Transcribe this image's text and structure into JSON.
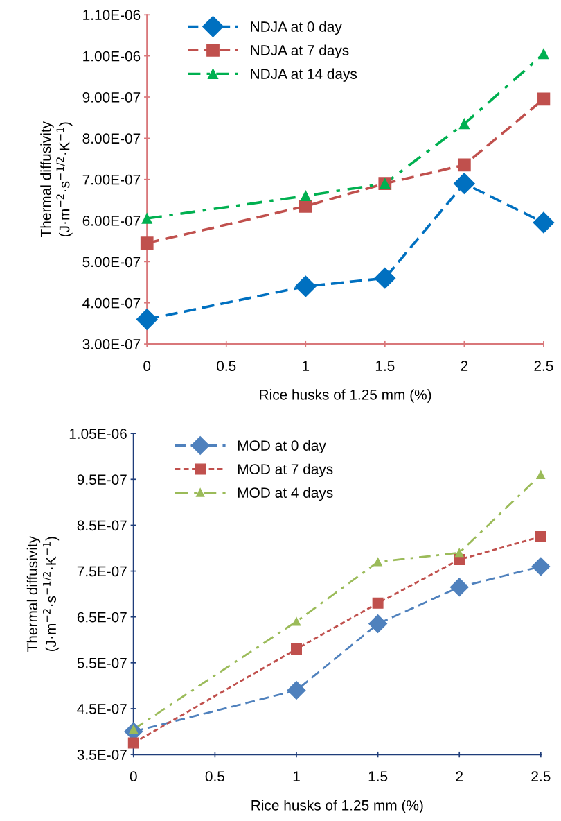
{
  "chart_data": [
    {
      "type": "line",
      "xlabel": "Rice husks of 1.25 mm (%)",
      "ylabel": "Thermal diffusivity\n(J·m$^{−2}$·s$^{−1/2}$·K$^{−1}$)",
      "x": [
        0,
        1,
        1.5,
        2,
        2.5
      ],
      "series": [
        {
          "name": "NDJA at 0 day",
          "color": "#0070c0",
          "marker": "diamond",
          "line_style": "dashed",
          "values": [
            3.6e-07,
            4.4e-07,
            4.6e-07,
            6.9e-07,
            5.95e-07
          ]
        },
        {
          "name": "NDJA at 7 days",
          "color": "#c0504d",
          "marker": "square",
          "line_style": "dashed",
          "values": [
            5.45e-07,
            6.35e-07,
            6.9e-07,
            7.35e-07,
            8.95e-07
          ]
        },
        {
          "name": "NDJA at 14 days",
          "color": "#00b050",
          "marker": "triangle",
          "line_style": "dashdot",
          "values": [
            6.05e-07,
            6.6e-07,
            6.9e-07,
            8.35e-07,
            1.005e-06
          ]
        }
      ],
      "xlim": [
        0,
        2.5
      ],
      "xticks": [
        0,
        0.5,
        1,
        1.5,
        2,
        2.5
      ],
      "ylim": [
        3e-07,
        1.1e-06
      ],
      "yticks": [
        {
          "value": 3e-07,
          "label": "3.00E-07"
        },
        {
          "value": 4e-07,
          "label": "4.00E-07"
        },
        {
          "value": 5e-07,
          "label": "5.00E-07"
        },
        {
          "value": 6e-07,
          "label": "6.00E-07"
        },
        {
          "value": 7e-07,
          "label": "7.00E-07"
        },
        {
          "value": 8e-07,
          "label": "8.00E-07"
        },
        {
          "value": 9e-07,
          "label": "9.00E-07"
        },
        {
          "value": 1e-06,
          "label": "1.00E-06"
        },
        {
          "value": 1.1e-06,
          "label": "1.10E-06"
        }
      ],
      "grid": false,
      "legend": "top left"
    },
    {
      "type": "line",
      "xlabel": "Rice husks of 1.25 mm (%)",
      "ylabel": "Thermal diffusivity\n(J·m$^{−2}$·s$^{−1/2}$·K$^{−1}$)",
      "x": [
        0,
        1,
        1.5,
        2,
        2.5
      ],
      "series": [
        {
          "name": "MOD at 0 day",
          "color": "#4f81bd",
          "marker": "diamond",
          "line_style": "dashed",
          "values": [
            4e-07,
            4.9e-07,
            6.35e-07,
            7.15e-07,
            7.6e-07
          ]
        },
        {
          "name": "MOD at 7 days",
          "color": "#c0504d",
          "marker": "square",
          "line_style": "dotted",
          "values": [
            3.75e-07,
            5.8e-07,
            6.8e-07,
            7.75e-07,
            8.25e-07
          ]
        },
        {
          "name": "MOD at 4 days",
          "color": "#9bbb59",
          "marker": "triangle",
          "line_style": "dashdot",
          "values": [
            4.05e-07,
            6.4e-07,
            7.7e-07,
            7.9e-07,
            9.6e-07
          ]
        }
      ],
      "xlim": [
        0,
        2.5
      ],
      "xticks": [
        0,
        0.5,
        1,
        1.5,
        2,
        2.5
      ],
      "ylim": [
        3.5e-07,
        1.05e-06
      ],
      "yticks": [
        {
          "value": 3.5e-07,
          "label": "3.5E-07"
        },
        {
          "value": 4.5e-07,
          "label": "4.5E-07"
        },
        {
          "value": 5.5e-07,
          "label": "5.5E-07"
        },
        {
          "value": 6.5e-07,
          "label": "6.5E-07"
        },
        {
          "value": 7.5e-07,
          "label": "7.5E-07"
        },
        {
          "value": 8.5e-07,
          "label": "8.5E-07"
        },
        {
          "value": 9.5e-07,
          "label": "9.5E-07"
        },
        {
          "value": 1.05e-06,
          "label": "1.05E-06"
        }
      ],
      "grid": false,
      "legend": "top left"
    }
  ]
}
